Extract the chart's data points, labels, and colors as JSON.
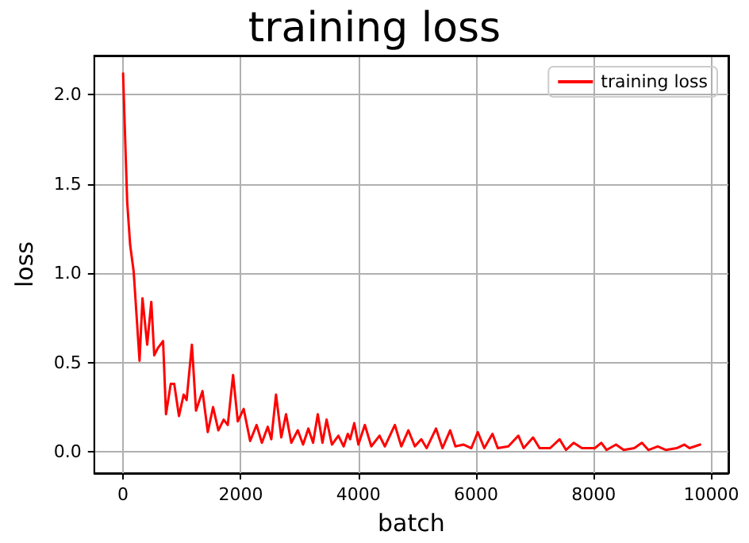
{
  "chart_data": {
    "type": "line",
    "title": "training loss",
    "xlabel": "batch",
    "ylabel": "loss",
    "xlim": [
      -490,
      10290
    ],
    "xticks": [
      0,
      2000,
      4000,
      6000,
      8000,
      10000
    ],
    "ylim": [
      -0.12,
      2.22
    ],
    "yticks": [
      {
        "value": 0,
        "label": "0.0"
      },
      {
        "value": 0.5,
        "label": "0.5"
      },
      {
        "value": 1,
        "label": "1.0"
      },
      {
        "value": 1.5,
        "label": "1.5"
      },
      {
        "value": 2,
        "label": "2.0"
      }
    ],
    "grid": true,
    "legend": "top right",
    "line_style": "solid",
    "marker": "none",
    "series": [
      {
        "name": "training loss",
        "color": "#ff0000",
        "x": [
          0,
          70,
          120,
          180,
          280,
          330,
          410,
          480,
          530,
          590,
          680,
          730,
          810,
          870,
          950,
          1030,
          1080,
          1170,
          1240,
          1350,
          1440,
          1530,
          1620,
          1710,
          1780,
          1870,
          1950,
          2050,
          2160,
          2270,
          2360,
          2460,
          2520,
          2600,
          2690,
          2770,
          2860,
          2970,
          3060,
          3150,
          3230,
          3310,
          3390,
          3460,
          3550,
          3660,
          3750,
          3820,
          3860,
          3930,
          4000,
          4110,
          4220,
          4360,
          4450,
          4620,
          4730,
          4850,
          4960,
          5070,
          5160,
          5320,
          5430,
          5560,
          5650,
          5790,
          5920,
          6030,
          6140,
          6280,
          6370,
          6550,
          6720,
          6810,
          6970,
          7080,
          7260,
          7420,
          7530,
          7660,
          7800,
          8020,
          8130,
          8220,
          8380,
          8510,
          8690,
          8820,
          8930,
          9090,
          9230,
          9410,
          9540,
          9630,
          9810
        ],
        "values": [
          2.12,
          1.4,
          1.16,
          1.01,
          0.51,
          0.86,
          0.6,
          0.84,
          0.54,
          0.58,
          0.62,
          0.21,
          0.38,
          0.38,
          0.2,
          0.32,
          0.29,
          0.6,
          0.23,
          0.34,
          0.11,
          0.25,
          0.12,
          0.18,
          0.15,
          0.43,
          0.17,
          0.24,
          0.06,
          0.15,
          0.05,
          0.14,
          0.07,
          0.32,
          0.08,
          0.21,
          0.05,
          0.12,
          0.04,
          0.13,
          0.05,
          0.21,
          0.05,
          0.18,
          0.04,
          0.09,
          0.03,
          0.1,
          0.07,
          0.16,
          0.04,
          0.15,
          0.03,
          0.09,
          0.03,
          0.15,
          0.03,
          0.12,
          0.03,
          0.07,
          0.02,
          0.13,
          0.02,
          0.12,
          0.03,
          0.04,
          0.02,
          0.11,
          0.02,
          0.1,
          0.02,
          0.03,
          0.09,
          0.02,
          0.08,
          0.02,
          0.02,
          0.07,
          0.01,
          0.05,
          0.02,
          0.02,
          0.05,
          0.01,
          0.04,
          0.01,
          0.02,
          0.05,
          0.01,
          0.03,
          0.01,
          0.02,
          0.04,
          0.02,
          0.04
        ]
      }
    ]
  }
}
